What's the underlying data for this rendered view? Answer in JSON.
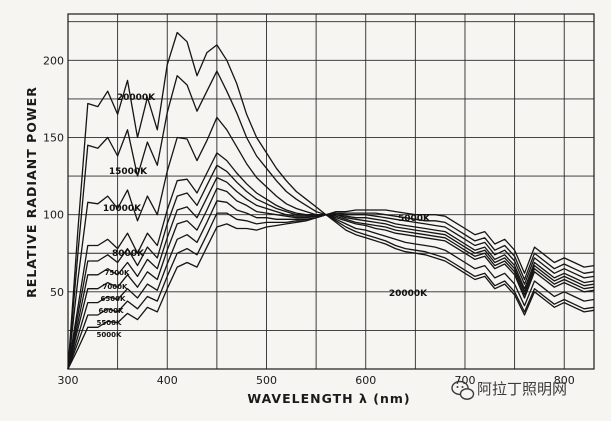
{
  "chart_data": {
    "type": "line",
    "xlabel": "WAVELENGTH λ (nm)",
    "ylabel": "RELATIVE RADIANT POWER",
    "xlim": [
      300,
      830
    ],
    "ylim": [
      0,
      230
    ],
    "x_ticks": [
      "300",
      "400",
      "500",
      "600",
      "700",
      "800"
    ],
    "y_ticks": [
      "50",
      "100",
      "150",
      "200"
    ],
    "grid": true,
    "annotations": {
      "hot_end_label": "20000K",
      "cool_end_label": "5000K"
    },
    "x": [
      300,
      310,
      320,
      330,
      340,
      350,
      360,
      370,
      380,
      390,
      400,
      410,
      420,
      430,
      440,
      450,
      460,
      470,
      480,
      490,
      500,
      510,
      520,
      530,
      540,
      550,
      560,
      570,
      580,
      590,
      600,
      610,
      620,
      630,
      640,
      650,
      660,
      670,
      680,
      690,
      700,
      710,
      720,
      730,
      740,
      750,
      760,
      770,
      780,
      790,
      800,
      810,
      820,
      830
    ],
    "series": [
      {
        "name": "20000K",
        "values": [
          0,
          90,
          172,
          170,
          180,
          165,
          187,
          150,
          176,
          155,
          197,
          218,
          212,
          190,
          205,
          210,
          200,
          185,
          165,
          150,
          140,
          130,
          122,
          115,
          110,
          105,
          100,
          95,
          90,
          87,
          85,
          83,
          81,
          78,
          76,
          75,
          74,
          72,
          70,
          66,
          62,
          58,
          60,
          52,
          55,
          48,
          35,
          50,
          45,
          40,
          43,
          40,
          37,
          38
        ]
      },
      {
        "name": "15000K",
        "values": [
          0,
          75,
          145,
          143,
          150,
          138,
          155,
          125,
          147,
          132,
          166,
          190,
          184,
          167,
          180,
          193,
          180,
          166,
          150,
          138,
          130,
          122,
          115,
          110,
          106,
          102,
          100,
          96,
          92,
          89,
          87,
          85,
          83,
          80,
          78,
          77,
          76,
          74,
          72,
          68,
          64,
          60,
          62,
          54,
          57,
          50,
          37,
          52,
          47,
          42,
          45,
          42,
          39,
          40
        ]
      },
      {
        "name": "10000K",
        "values": [
          0,
          58,
          108,
          107,
          112,
          104,
          116,
          96,
          112,
          100,
          128,
          150,
          149,
          135,
          148,
          163,
          155,
          144,
          133,
          124,
          118,
          112,
          107,
          104,
          102,
          100,
          100,
          97,
          94,
          91,
          90,
          88,
          86,
          84,
          82,
          81,
          80,
          79,
          77,
          73,
          69,
          65,
          67,
          59,
          62,
          55,
          41,
          57,
          52,
          47,
          50,
          47,
          44,
          45
        ]
      },
      {
        "name": "8000K",
        "values": [
          0,
          40,
          80,
          80,
          84,
          78,
          88,
          75,
          88,
          80,
          103,
          122,
          123,
          114,
          127,
          140,
          135,
          127,
          120,
          114,
          110,
          106,
          103,
          101,
          100,
          100,
          100,
          98,
          96,
          94,
          93,
          91,
          90,
          88,
          87,
          86,
          85,
          84,
          83,
          79,
          75,
          71,
          73,
          65,
          68,
          61,
          46,
          63,
          58,
          53,
          56,
          53,
          50,
          51
        ]
      },
      {
        "name": "7500K",
        "values": [
          0,
          35,
          70,
          70,
          74,
          69,
          78,
          67,
          79,
          72,
          94,
          112,
          114,
          106,
          119,
          132,
          128,
          121,
          115,
          110,
          107,
          104,
          102,
          100,
          100,
          100,
          100,
          99,
          97,
          95,
          94,
          93,
          92,
          90,
          89,
          88,
          87,
          86,
          85,
          81,
          77,
          73,
          75,
          67,
          70,
          63,
          48,
          65,
          60,
          55,
          58,
          55,
          52,
          53
        ]
      },
      {
        "name": "7000K",
        "values": [
          0,
          30,
          61,
          61,
          65,
          61,
          69,
          60,
          71,
          65,
          85,
          103,
          105,
          98,
          111,
          124,
          121,
          115,
          110,
          106,
          104,
          102,
          100,
          99,
          99,
          99,
          100,
          100,
          98,
          97,
          96,
          95,
          94,
          92,
          91,
          90,
          89,
          88,
          87,
          83,
          79,
          75,
          77,
          69,
          72,
          65,
          50,
          67,
          62,
          57,
          60,
          57,
          54,
          55
        ]
      },
      {
        "name": "6500K",
        "values": [
          0,
          26,
          52,
          52,
          56,
          53,
          61,
          53,
          63,
          58,
          77,
          94,
          96,
          90,
          103,
          117,
          115,
          109,
          106,
          102,
          101,
          100,
          99,
          98,
          98,
          99,
          100,
          100,
          99,
          98,
          98,
          97,
          96,
          94,
          93,
          92,
          91,
          90,
          89,
          85,
          81,
          77,
          79,
          71,
          74,
          67,
          52,
          69,
          64,
          59,
          62,
          59,
          56,
          57
        ]
      },
      {
        "name": "6000K",
        "values": [
          0,
          21,
          43,
          43,
          47,
          45,
          52,
          46,
          55,
          51,
          68,
          84,
          87,
          82,
          95,
          109,
          108,
          103,
          101,
          98,
          98,
          97,
          97,
          97,
          97,
          98,
          100,
          101,
          100,
          100,
          100,
          99,
          98,
          97,
          96,
          95,
          94,
          93,
          92,
          88,
          84,
          80,
          82,
          74,
          77,
          70,
          55,
          72,
          67,
          62,
          65,
          62,
          59,
          60
        ]
      },
      {
        "name": "5500K",
        "values": [
          0,
          17,
          35,
          35,
          39,
          37,
          44,
          39,
          47,
          44,
          60,
          75,
          78,
          74,
          87,
          101,
          101,
          97,
          96,
          94,
          95,
          95,
          95,
          96,
          96,
          98,
          100,
          101,
          101,
          101,
          101,
          101,
          100,
          99,
          98,
          97,
          96,
          96,
          95,
          91,
          87,
          83,
          85,
          77,
          80,
          73,
          58,
          75,
          70,
          65,
          68,
          65,
          62,
          63
        ]
      },
      {
        "name": "5000K",
        "values": [
          0,
          13,
          27,
          27,
          31,
          30,
          36,
          32,
          40,
          37,
          52,
          66,
          69,
          66,
          79,
          92,
          94,
          91,
          91,
          90,
          92,
          93,
          94,
          95,
          96,
          98,
          100,
          102,
          102,
          103,
          103,
          103,
          103,
          102,
          101,
          100,
          100,
          100,
          99,
          95,
          91,
          87,
          89,
          81,
          84,
          77,
          62,
          79,
          74,
          69,
          72,
          69,
          66,
          67
        ]
      }
    ]
  },
  "watermark": {
    "text": "阿拉丁照明网",
    "icon": "wechat-icon"
  }
}
